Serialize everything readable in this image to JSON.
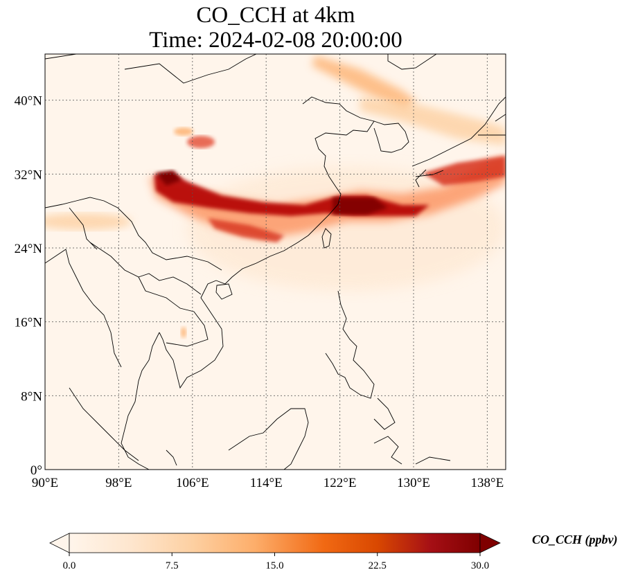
{
  "map": {
    "title_line1": "CO_CCH at 4km",
    "title_line2": "Time: 2024-02-08 20:00:00",
    "lon_range": [
      90,
      140
    ],
    "lat_range": [
      0,
      45
    ],
    "lon_ticks": [
      {
        "value": 90,
        "label": "90°E"
      },
      {
        "value": 98,
        "label": "98°E"
      },
      {
        "value": 106,
        "label": "106°E"
      },
      {
        "value": 114,
        "label": "114°E"
      },
      {
        "value": 122,
        "label": "122°E"
      },
      {
        "value": 130,
        "label": "130°E"
      },
      {
        "value": 138,
        "label": "138°E"
      }
    ],
    "lat_ticks": [
      {
        "value": 0,
        "label": "0°"
      },
      {
        "value": 8,
        "label": "8°N"
      },
      {
        "value": 16,
        "label": "16°N"
      },
      {
        "value": 24,
        "label": "24°N"
      },
      {
        "value": 32,
        "label": "32°N"
      },
      {
        "value": 40,
        "label": "40°N"
      }
    ],
    "gridlines": true,
    "colormap": "OrRd",
    "background_color": "#fff5eb",
    "coastline_color": "#000000"
  },
  "colorbar": {
    "label": "CO_CCH (ppbv)",
    "min": 0,
    "max": 30,
    "ticks": [
      {
        "value": 0,
        "label": "0.0"
      },
      {
        "value": 7.5,
        "label": "7.5"
      },
      {
        "value": 15,
        "label": "15.0"
      },
      {
        "value": 22.5,
        "label": "22.5"
      },
      {
        "value": 30,
        "label": "30.0"
      }
    ],
    "under_color": "#fff5eb",
    "over_color": "#7f0000",
    "stops": [
      "#fff5eb",
      "#fee6ce",
      "#fdd0a2",
      "#fdae6b",
      "#f16913",
      "#d94801",
      "#a50f15",
      "#7f0000"
    ]
  }
}
